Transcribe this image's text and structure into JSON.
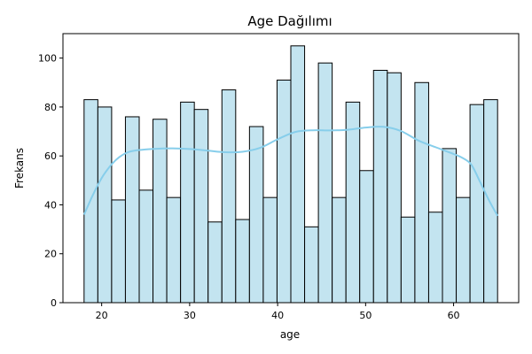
{
  "chart_data": {
    "type": "bar",
    "title": "Age Dağılımı",
    "xlabel": "age",
    "ylabel": "Frekans",
    "xlim": [
      15.6,
      67.4
    ],
    "ylim": [
      0,
      110
    ],
    "xticks": [
      20,
      30,
      40,
      50,
      60
    ],
    "yticks": [
      0,
      20,
      40,
      60,
      80,
      100
    ],
    "bins": {
      "start": 18,
      "end": 65,
      "edges": [
        18,
        19.567,
        21.133,
        22.7,
        24.267,
        25.833,
        27.4,
        28.967,
        30.533,
        32.1,
        33.667,
        35.233,
        36.8,
        38.367,
        39.933,
        41.5,
        43.067,
        44.633,
        46.2,
        47.767,
        49.333,
        50.9,
        52.467,
        54.033,
        55.6,
        57.167,
        58.733,
        60.3,
        61.867,
        63.433,
        65
      ]
    },
    "values": [
      83,
      80,
      42,
      76,
      46,
      75,
      43,
      82,
      79,
      33,
      87,
      34,
      72,
      43,
      91,
      105,
      31,
      98,
      43,
      82,
      54,
      95,
      94,
      35,
      90,
      37,
      63,
      43,
      81,
      83
    ],
    "kde": {
      "x": [
        18,
        19,
        20,
        21,
        22,
        23,
        24,
        26,
        28,
        30,
        32,
        34,
        36,
        38,
        40,
        42,
        44,
        46,
        48,
        50,
        52,
        54,
        56,
        58,
        60,
        61,
        62,
        63,
        64,
        65
      ],
      "y": [
        36,
        44,
        51,
        56,
        59.5,
        61.5,
        62.3,
        62.9,
        63.1,
        62.8,
        62.2,
        61.5,
        61.7,
        63.3,
        66.8,
        69.8,
        70.5,
        70.4,
        70.7,
        71.6,
        71.9,
        70.2,
        66.3,
        63.5,
        60.8,
        59.2,
        56.5,
        49.5,
        42,
        35.5
      ]
    },
    "colors": {
      "bar_fill": "#c3e4f0",
      "bar_edge": "#000000",
      "kde_line": "#87ceeb"
    },
    "grid": false,
    "legend": "none"
  }
}
